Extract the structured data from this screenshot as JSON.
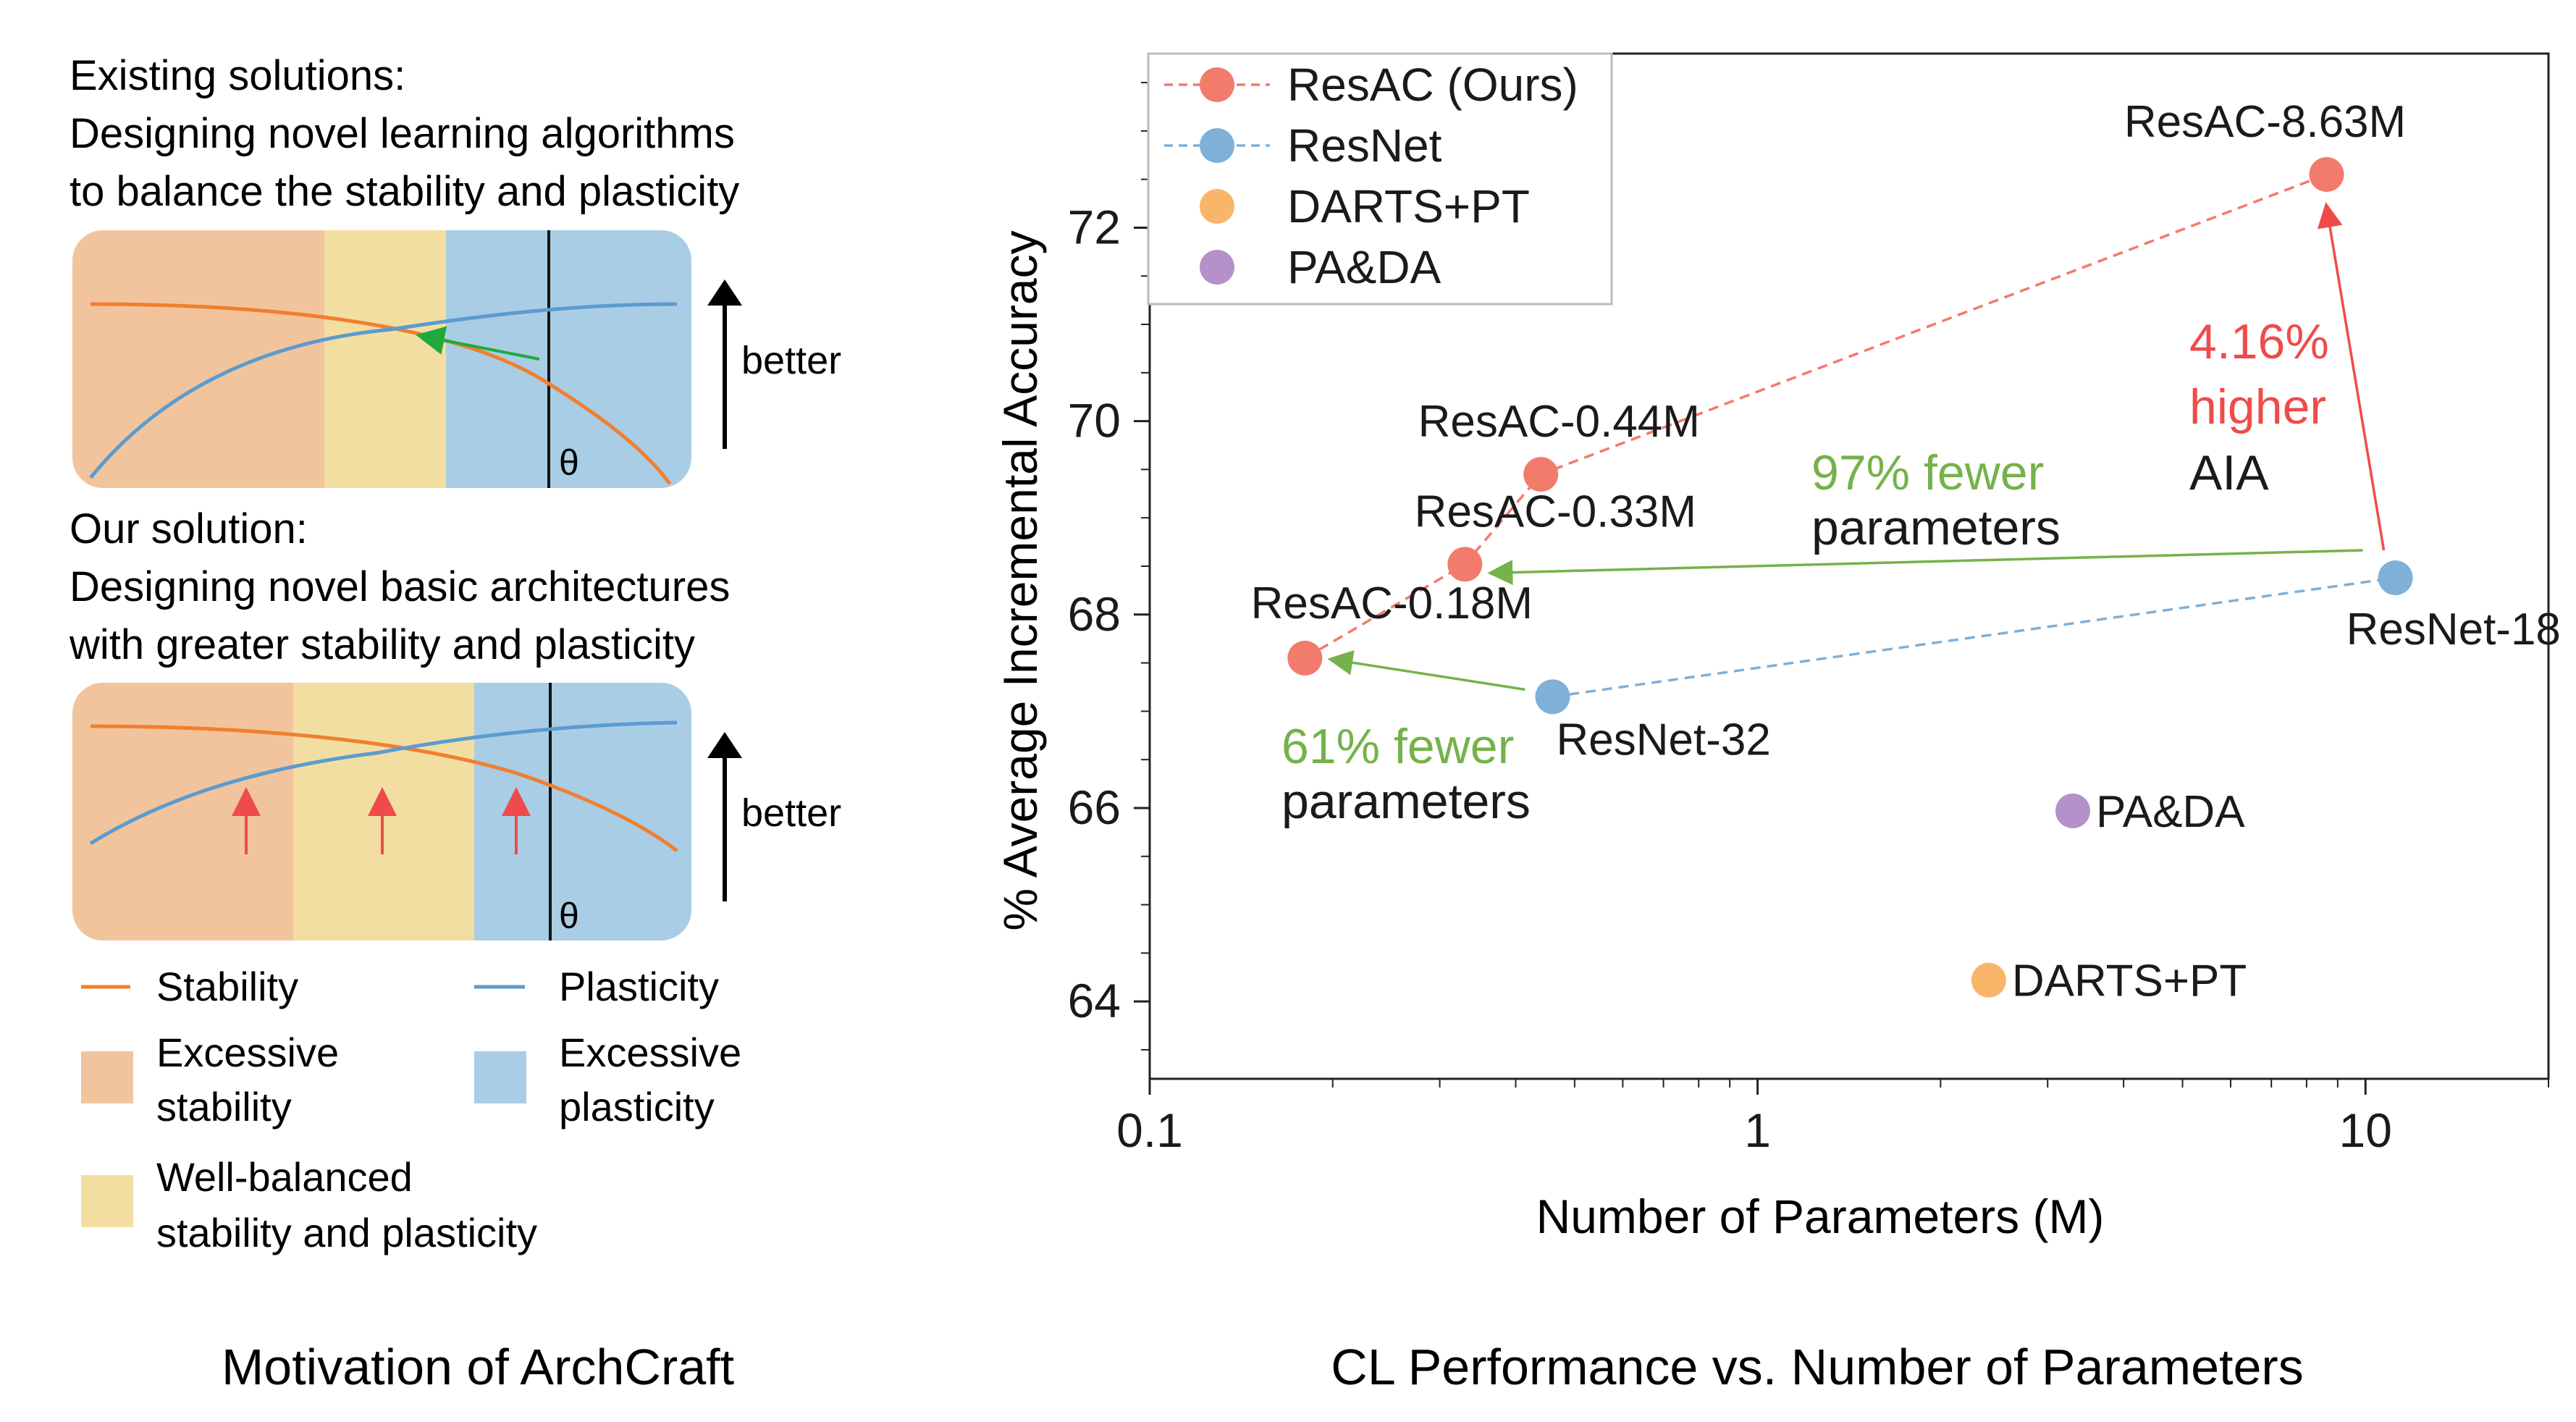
{
  "colors": {
    "resac": "#f27b6c",
    "resnet": "#7fb0d8",
    "darts": "#f9b56a",
    "pada": "#b491c8",
    "stability_line": "#f07f2f",
    "plasticity_line": "#5b9bd0",
    "excessive_stability": "#f2c49d",
    "well_balanced": "#f3dea2",
    "excessive_plasticity": "#a9cde4",
    "green_text": "#75b24a",
    "red_text": "#ef4b4b",
    "green_arrow": "#1faa3c",
    "red_arrow": "#ef4b4b"
  },
  "motivation": {
    "existing_title": "Existing solutions:",
    "existing_line1": "Designing novel learning algorithms",
    "existing_line2": "to balance the stability and plasticity",
    "our_title": "Our solution:",
    "our_line1": "Designing novel basic architectures",
    "our_line2": "with greater stability and plasticity",
    "better_label": "better",
    "theta_label": "θ",
    "legend": {
      "stability": "Stability",
      "plasticity": "Plasticity",
      "excessive_stability_1": "Excessive",
      "excessive_stability_2": "stability",
      "excessive_plasticity_1": "Excessive",
      "excessive_plasticity_2": "plasticity",
      "well_balanced_1": "Well-balanced",
      "well_balanced_2": "stability and plasticity"
    },
    "caption": "Motivation of ArchCraft"
  },
  "chart_data": {
    "type": "scatter",
    "xlabel": "Number of Parameters (M)",
    "ylabel": "% Average Incremental Accuracy",
    "x_scale": "log",
    "xlim": [
      0.1,
      20
    ],
    "ylim": [
      63.2,
      73.8
    ],
    "x_ticks": [
      "0.1",
      "1",
      "10"
    ],
    "y_ticks": [
      "64",
      "66",
      "68",
      "70",
      "72"
    ],
    "legend_position": "top-left",
    "series": [
      {
        "name": "ResAC (Ours)",
        "color_key": "resac",
        "connected": true,
        "points": [
          {
            "x": 0.18,
            "y": 67.55,
            "label": "ResAC-0.18M"
          },
          {
            "x": 0.33,
            "y": 68.52,
            "label": "ResAC-0.33M"
          },
          {
            "x": 0.44,
            "y": 69.45,
            "label": "ResAC-0.44M"
          },
          {
            "x": 8.63,
            "y": 72.55,
            "label": "ResAC-8.63M"
          }
        ]
      },
      {
        "name": "ResNet",
        "color_key": "resnet",
        "connected": true,
        "points": [
          {
            "x": 0.46,
            "y": 67.15,
            "label": "ResNet-32"
          },
          {
            "x": 11.2,
            "y": 68.38,
            "label": "ResNet-18"
          }
        ]
      },
      {
        "name": "DARTS+PT",
        "color_key": "darts",
        "connected": false,
        "points": [
          {
            "x": 2.4,
            "y": 64.22,
            "label": "DARTS+PT"
          }
        ]
      },
      {
        "name": "PA&DA",
        "color_key": "pada",
        "connected": false,
        "points": [
          {
            "x": 3.3,
            "y": 65.97,
            "label": "PA&DA"
          }
        ]
      }
    ],
    "annotations": {
      "fewer97_line1": "97% fewer",
      "fewer97_line2": "parameters",
      "fewer61_line1": "61% fewer",
      "fewer61_line2": "parameters",
      "higher_line1": "4.16%",
      "higher_line2": "higher",
      "higher_line3": "AIA"
    },
    "caption": "CL Performance vs. Number of Parameters"
  }
}
